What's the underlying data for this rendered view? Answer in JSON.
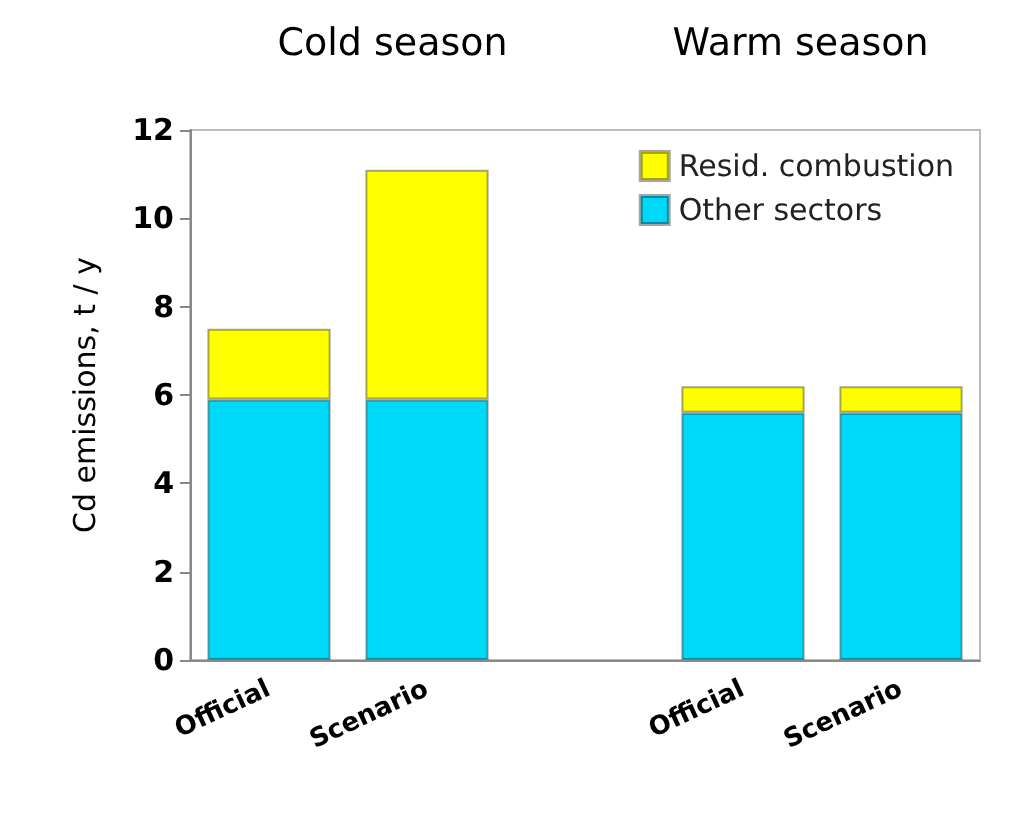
{
  "chart_data": {
    "type": "bar",
    "stacked": true,
    "annotations": [
      "Cold season",
      "Warm season"
    ],
    "ylabel": "Cd emissions, t / y",
    "categories": [
      "Official",
      "Scenario",
      null,
      "Official",
      "Scenario"
    ],
    "series": [
      {
        "name": "Other sectors",
        "color": "#00d8f8",
        "values": [
          5.9,
          5.9,
          null,
          5.6,
          5.6
        ]
      },
      {
        "name": "Resid. combustion",
        "color": "#ffff00",
        "values": [
          1.6,
          5.2,
          null,
          0.6,
          0.6
        ]
      }
    ],
    "ylim": [
      0,
      12
    ],
    "yticks": [
      0,
      2,
      4,
      6,
      8,
      10,
      12
    ],
    "grid": false,
    "legend": "top right"
  }
}
